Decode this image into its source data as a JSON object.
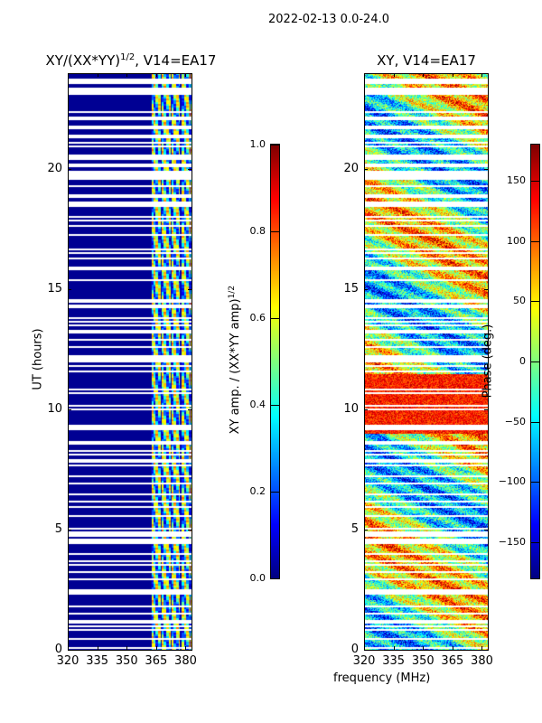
{
  "suptitle": "2022-02-13 0.0-24.0",
  "xlabel": "frequency (MHz)",
  "chart_data": [
    {
      "type": "heatmap",
      "title_main": "XY/(XX*YY)",
      "title_sup": "1/2",
      "title_rest": ", V14=EA17",
      "xlabel": "frequency (MHz)",
      "ylabel": "UT (hours)",
      "xlim": [
        320,
        383
      ],
      "ylim": [
        0,
        24
      ],
      "xticks": [
        320,
        335,
        350,
        365,
        380
      ],
      "yticks": [
        0,
        5,
        10,
        15,
        20
      ],
      "colormap": "jet",
      "clim": [
        0.0,
        1.0
      ],
      "colorbar_label_main": "XY amp. / (XX*YY amp)",
      "colorbar_label_sup": "1/2",
      "colorbar_ticks": [
        "0.0",
        "0.2",
        "0.4",
        "0.6",
        "0.8",
        "1.0"
      ],
      "colorbar_tick_values": [
        0.0,
        0.2,
        0.4,
        0.6,
        0.8,
        1.0
      ],
      "pattern": {
        "low_band_value": 0.02,
        "active_band_mhz": [
          362,
          382
        ],
        "active_range": [
          0.3,
          0.8
        ]
      }
    },
    {
      "type": "heatmap",
      "title": "XY, V14=EA17",
      "xlabel": "frequency (MHz)",
      "ylabel": "",
      "xlim": [
        320,
        383
      ],
      "ylim": [
        0,
        24
      ],
      "xticks": [
        320,
        335,
        350,
        365,
        380
      ],
      "yticks": [
        0,
        5,
        10,
        15,
        20
      ],
      "colormap": "jet",
      "clim": [
        -180,
        180
      ],
      "colorbar_label": "Phase (deg.)",
      "colorbar_ticks": [
        "−150",
        "−100",
        "−50",
        "0",
        "50",
        "100",
        "150"
      ],
      "colorbar_tick_values": [
        -150,
        -100,
        -50,
        0,
        50,
        100,
        150
      ]
    }
  ]
}
